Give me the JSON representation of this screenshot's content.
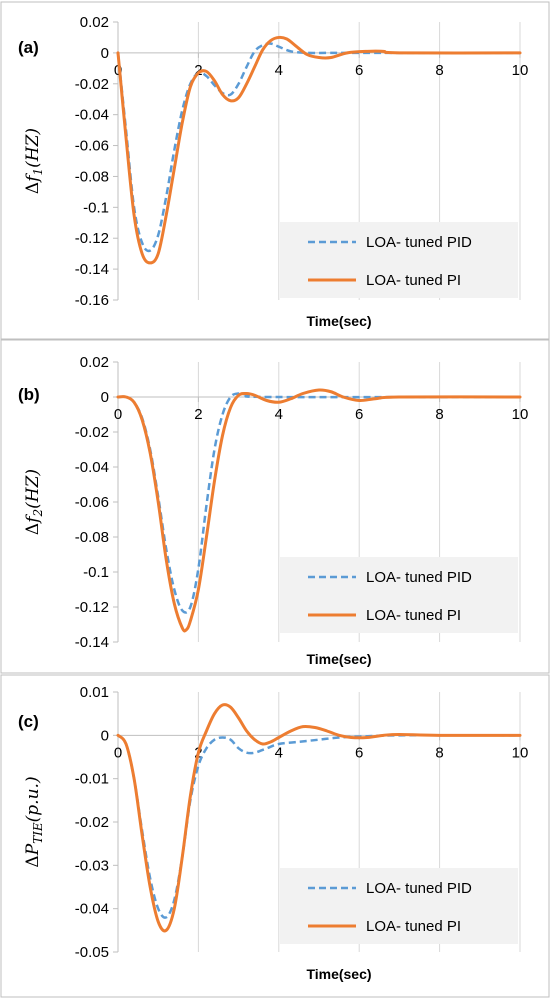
{
  "chart_data": [
    {
      "type": "line",
      "panel_label": "(a)",
      "ylabel": "Δf1(HZ)",
      "ylabel_parts": {
        "prefix": "Δ",
        "main": "f",
        "sub": "1",
        "suffix": "(HZ)"
      },
      "xlabel": "Time(sec)",
      "xlim": [
        0,
        10
      ],
      "ylim": [
        -0.16,
        0.02
      ],
      "xticks": [
        0,
        2,
        4,
        6,
        8,
        10
      ],
      "yticks": [
        0.02,
        0,
        -0.02,
        -0.04,
        -0.06,
        -0.08,
        -0.1,
        -0.12,
        -0.14,
        -0.16
      ],
      "ytick_labels": [
        "0.02",
        "0",
        "-0.02",
        "-0.04",
        "-0.06",
        "-0.08",
        "-0.1",
        "-0.12",
        "-0.14",
        "-0.16"
      ],
      "grid": "vertical",
      "legend": "bottom-right",
      "series": [
        {
          "name": "LOA- tuned PID",
          "color": "#5b9bd5",
          "style": "dashed",
          "points": [
            [
              0,
              0
            ],
            [
              0.2,
              -0.05
            ],
            [
              0.4,
              -0.1
            ],
            [
              0.6,
              -0.123
            ],
            [
              0.8,
              -0.128
            ],
            [
              1.0,
              -0.118
            ],
            [
              1.2,
              -0.093
            ],
            [
              1.4,
              -0.063
            ],
            [
              1.6,
              -0.037
            ],
            [
              1.8,
              -0.02
            ],
            [
              2.0,
              -0.013
            ],
            [
              2.2,
              -0.015
            ],
            [
              2.4,
              -0.021
            ],
            [
              2.6,
              -0.026
            ],
            [
              2.8,
              -0.027
            ],
            [
              3.0,
              -0.02
            ],
            [
              3.2,
              -0.009
            ],
            [
              3.4,
              0.001
            ],
            [
              3.6,
              0.005
            ],
            [
              3.8,
              0.006
            ],
            [
              4.0,
              0.004
            ],
            [
              4.3,
              0.001
            ],
            [
              4.7,
              0.0
            ],
            [
              5.2,
              0.0
            ],
            [
              6.0,
              0.0
            ],
            [
              10,
              0.0
            ]
          ]
        },
        {
          "name": "LOA- tuned PI",
          "color": "#ed7d31",
          "style": "solid",
          "points": [
            [
              0,
              0
            ],
            [
              0.2,
              -0.055
            ],
            [
              0.4,
              -0.105
            ],
            [
              0.6,
              -0.13
            ],
            [
              0.8,
              -0.136
            ],
            [
              1.0,
              -0.13
            ],
            [
              1.2,
              -0.105
            ],
            [
              1.4,
              -0.075
            ],
            [
              1.6,
              -0.045
            ],
            [
              1.8,
              -0.022
            ],
            [
              2.0,
              -0.013
            ],
            [
              2.2,
              -0.012
            ],
            [
              2.4,
              -0.018
            ],
            [
              2.6,
              -0.027
            ],
            [
              2.8,
              -0.031
            ],
            [
              3.0,
              -0.029
            ],
            [
              3.2,
              -0.02
            ],
            [
              3.4,
              -0.009
            ],
            [
              3.6,
              0.002
            ],
            [
              3.8,
              0.008
            ],
            [
              4.0,
              0.01
            ],
            [
              4.2,
              0.009
            ],
            [
              4.4,
              0.005
            ],
            [
              4.7,
              -0.001
            ],
            [
              5.0,
              -0.003
            ],
            [
              5.3,
              -0.003
            ],
            [
              5.7,
              0.0
            ],
            [
              6.2,
              0.001
            ],
            [
              6.6,
              0.001
            ],
            [
              7.0,
              0.0
            ],
            [
              10,
              0.0
            ]
          ]
        }
      ]
    },
    {
      "type": "line",
      "panel_label": "(b)",
      "ylabel": "Δf2(HZ)",
      "ylabel_parts": {
        "prefix": "Δ",
        "main": "f",
        "sub": "2",
        "suffix": "(HZ)"
      },
      "xlabel": "Time(sec)",
      "xlim": [
        0,
        10
      ],
      "ylim": [
        -0.14,
        0.02
      ],
      "xticks": [
        0,
        2,
        4,
        6,
        8,
        10
      ],
      "yticks": [
        0.02,
        0,
        -0.02,
        -0.04,
        -0.06,
        -0.08,
        -0.1,
        -0.12,
        -0.14
      ],
      "ytick_labels": [
        "0.02",
        "0",
        "-0.02",
        "-0.04",
        "-0.06",
        "-0.08",
        "-0.1",
        "-0.12",
        "-0.14"
      ],
      "grid": "vertical",
      "legend": "bottom-right",
      "series": [
        {
          "name": "LOA- tuned PID",
          "color": "#5b9bd5",
          "style": "dashed",
          "points": [
            [
              0,
              0
            ],
            [
              0.2,
              0
            ],
            [
              0.4,
              -0.003
            ],
            [
              0.6,
              -0.012
            ],
            [
              0.8,
              -0.03
            ],
            [
              1.0,
              -0.057
            ],
            [
              1.2,
              -0.087
            ],
            [
              1.4,
              -0.11
            ],
            [
              1.6,
              -0.122
            ],
            [
              1.8,
              -0.12
            ],
            [
              2.0,
              -0.098
            ],
            [
              2.2,
              -0.062
            ],
            [
              2.4,
              -0.03
            ],
            [
              2.6,
              -0.01
            ],
            [
              2.8,
              0.0
            ],
            [
              3.0,
              0.002
            ],
            [
              3.3,
              0.001
            ],
            [
              3.8,
              0.0
            ],
            [
              10,
              0.0
            ]
          ]
        },
        {
          "name": "LOA- tuned PI",
          "color": "#ed7d31",
          "style": "solid",
          "points": [
            [
              0,
              0
            ],
            [
              0.2,
              0
            ],
            [
              0.4,
              -0.003
            ],
            [
              0.6,
              -0.013
            ],
            [
              0.8,
              -0.032
            ],
            [
              1.0,
              -0.06
            ],
            [
              1.2,
              -0.093
            ],
            [
              1.4,
              -0.118
            ],
            [
              1.6,
              -0.132
            ],
            [
              1.7,
              -0.133
            ],
            [
              1.8,
              -0.128
            ],
            [
              2.0,
              -0.11
            ],
            [
              2.2,
              -0.08
            ],
            [
              2.4,
              -0.048
            ],
            [
              2.6,
              -0.022
            ],
            [
              2.8,
              -0.006
            ],
            [
              3.0,
              0.001
            ],
            [
              3.2,
              0.002
            ],
            [
              3.4,
              0.001
            ],
            [
              3.7,
              -0.002
            ],
            [
              4.0,
              -0.003
            ],
            [
              4.3,
              -0.001
            ],
            [
              4.6,
              0.002
            ],
            [
              5.0,
              0.004
            ],
            [
              5.3,
              0.003
            ],
            [
              5.6,
              0.0
            ],
            [
              6.0,
              -0.002
            ],
            [
              6.4,
              -0.001
            ],
            [
              7.0,
              0.0
            ],
            [
              10,
              0.0
            ]
          ]
        }
      ]
    },
    {
      "type": "line",
      "panel_label": "(c)",
      "ylabel": "ΔPTIE(p.u.)",
      "ylabel_parts": {
        "prefix": "Δ",
        "main": "P",
        "sub": "TIE",
        "suffix": "(p.u.)"
      },
      "xlabel": "Time(sec)",
      "xlim": [
        0,
        10
      ],
      "ylim": [
        -0.05,
        0.01
      ],
      "xticks": [
        0,
        2,
        4,
        6,
        8,
        10
      ],
      "yticks": [
        0.01,
        0,
        -0.01,
        -0.02,
        -0.03,
        -0.04,
        -0.05
      ],
      "ytick_labels": [
        "0.01",
        "0",
        "-0.01",
        "-0.02",
        "-0.03",
        "-0.04",
        "-0.05"
      ],
      "grid": "vertical",
      "legend": "bottom-right",
      "series": [
        {
          "name": "LOA- tuned PID",
          "color": "#5b9bd5",
          "style": "dashed",
          "points": [
            [
              0,
              0
            ],
            [
              0.2,
              -0.002
            ],
            [
              0.4,
              -0.01
            ],
            [
              0.6,
              -0.022
            ],
            [
              0.8,
              -0.033
            ],
            [
              1.0,
              -0.04
            ],
            [
              1.2,
              -0.042
            ],
            [
              1.4,
              -0.038
            ],
            [
              1.6,
              -0.028
            ],
            [
              1.8,
              -0.015
            ],
            [
              2.0,
              -0.007
            ],
            [
              2.2,
              -0.003
            ],
            [
              2.4,
              -0.001
            ],
            [
              2.6,
              -0.0005
            ],
            [
              2.8,
              -0.001
            ],
            [
              3.0,
              -0.003
            ],
            [
              3.2,
              -0.004
            ],
            [
              3.4,
              -0.004
            ],
            [
              3.7,
              -0.003
            ],
            [
              4.0,
              -0.002
            ],
            [
              4.5,
              -0.0015
            ],
            [
              5.0,
              -0.001
            ],
            [
              5.5,
              -0.0005
            ],
            [
              6.0,
              -0.0003
            ],
            [
              7.0,
              0.0
            ],
            [
              10,
              0.0
            ]
          ]
        },
        {
          "name": "LOA- tuned PI",
          "color": "#ed7d31",
          "style": "solid",
          "points": [
            [
              0,
              0
            ],
            [
              0.2,
              -0.002
            ],
            [
              0.4,
              -0.01
            ],
            [
              0.6,
              -0.023
            ],
            [
              0.8,
              -0.035
            ],
            [
              1.0,
              -0.043
            ],
            [
              1.2,
              -0.045
            ],
            [
              1.4,
              -0.04
            ],
            [
              1.6,
              -0.028
            ],
            [
              1.8,
              -0.014
            ],
            [
              2.0,
              -0.004
            ],
            [
              2.2,
              0.001
            ],
            [
              2.4,
              0.005
            ],
            [
              2.6,
              0.007
            ],
            [
              2.8,
              0.0065
            ],
            [
              3.0,
              0.004
            ],
            [
              3.2,
              0.001
            ],
            [
              3.4,
              -0.001
            ],
            [
              3.6,
              -0.002
            ],
            [
              3.8,
              -0.0015
            ],
            [
              4.0,
              -0.0005
            ],
            [
              4.3,
              0.001
            ],
            [
              4.6,
              0.002
            ],
            [
              4.9,
              0.0018
            ],
            [
              5.2,
              0.001
            ],
            [
              5.5,
              0.0
            ],
            [
              5.8,
              -0.0005
            ],
            [
              6.2,
              -0.0005
            ],
            [
              6.6,
              0.0
            ],
            [
              7.0,
              0.0002
            ],
            [
              8.0,
              0.0
            ],
            [
              10,
              0.0
            ]
          ]
        }
      ]
    }
  ]
}
